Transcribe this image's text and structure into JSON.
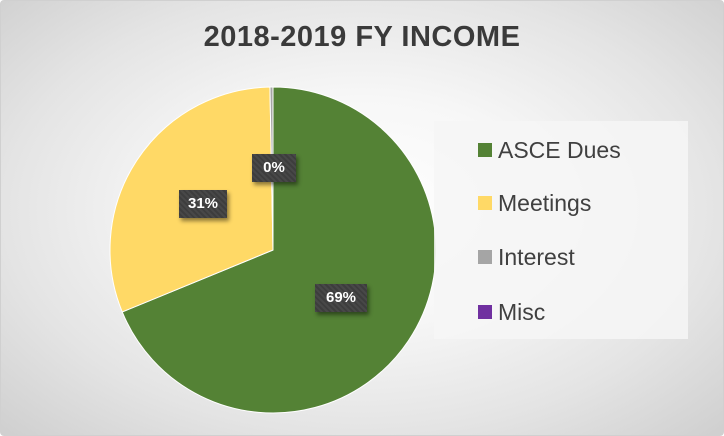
{
  "chart_data": {
    "type": "pie",
    "title": "2018-2019 FY INCOME",
    "categories": [
      "ASCE Dues",
      "Meetings",
      "Interest",
      "Misc"
    ],
    "values": [
      69,
      31,
      0.3,
      0
    ],
    "data_labels": [
      "69%",
      "31%",
      "0%",
      ""
    ],
    "colors": [
      "#548235",
      "#ffd966",
      "#a5a5a5",
      "#7030a0"
    ],
    "legend": "right"
  }
}
